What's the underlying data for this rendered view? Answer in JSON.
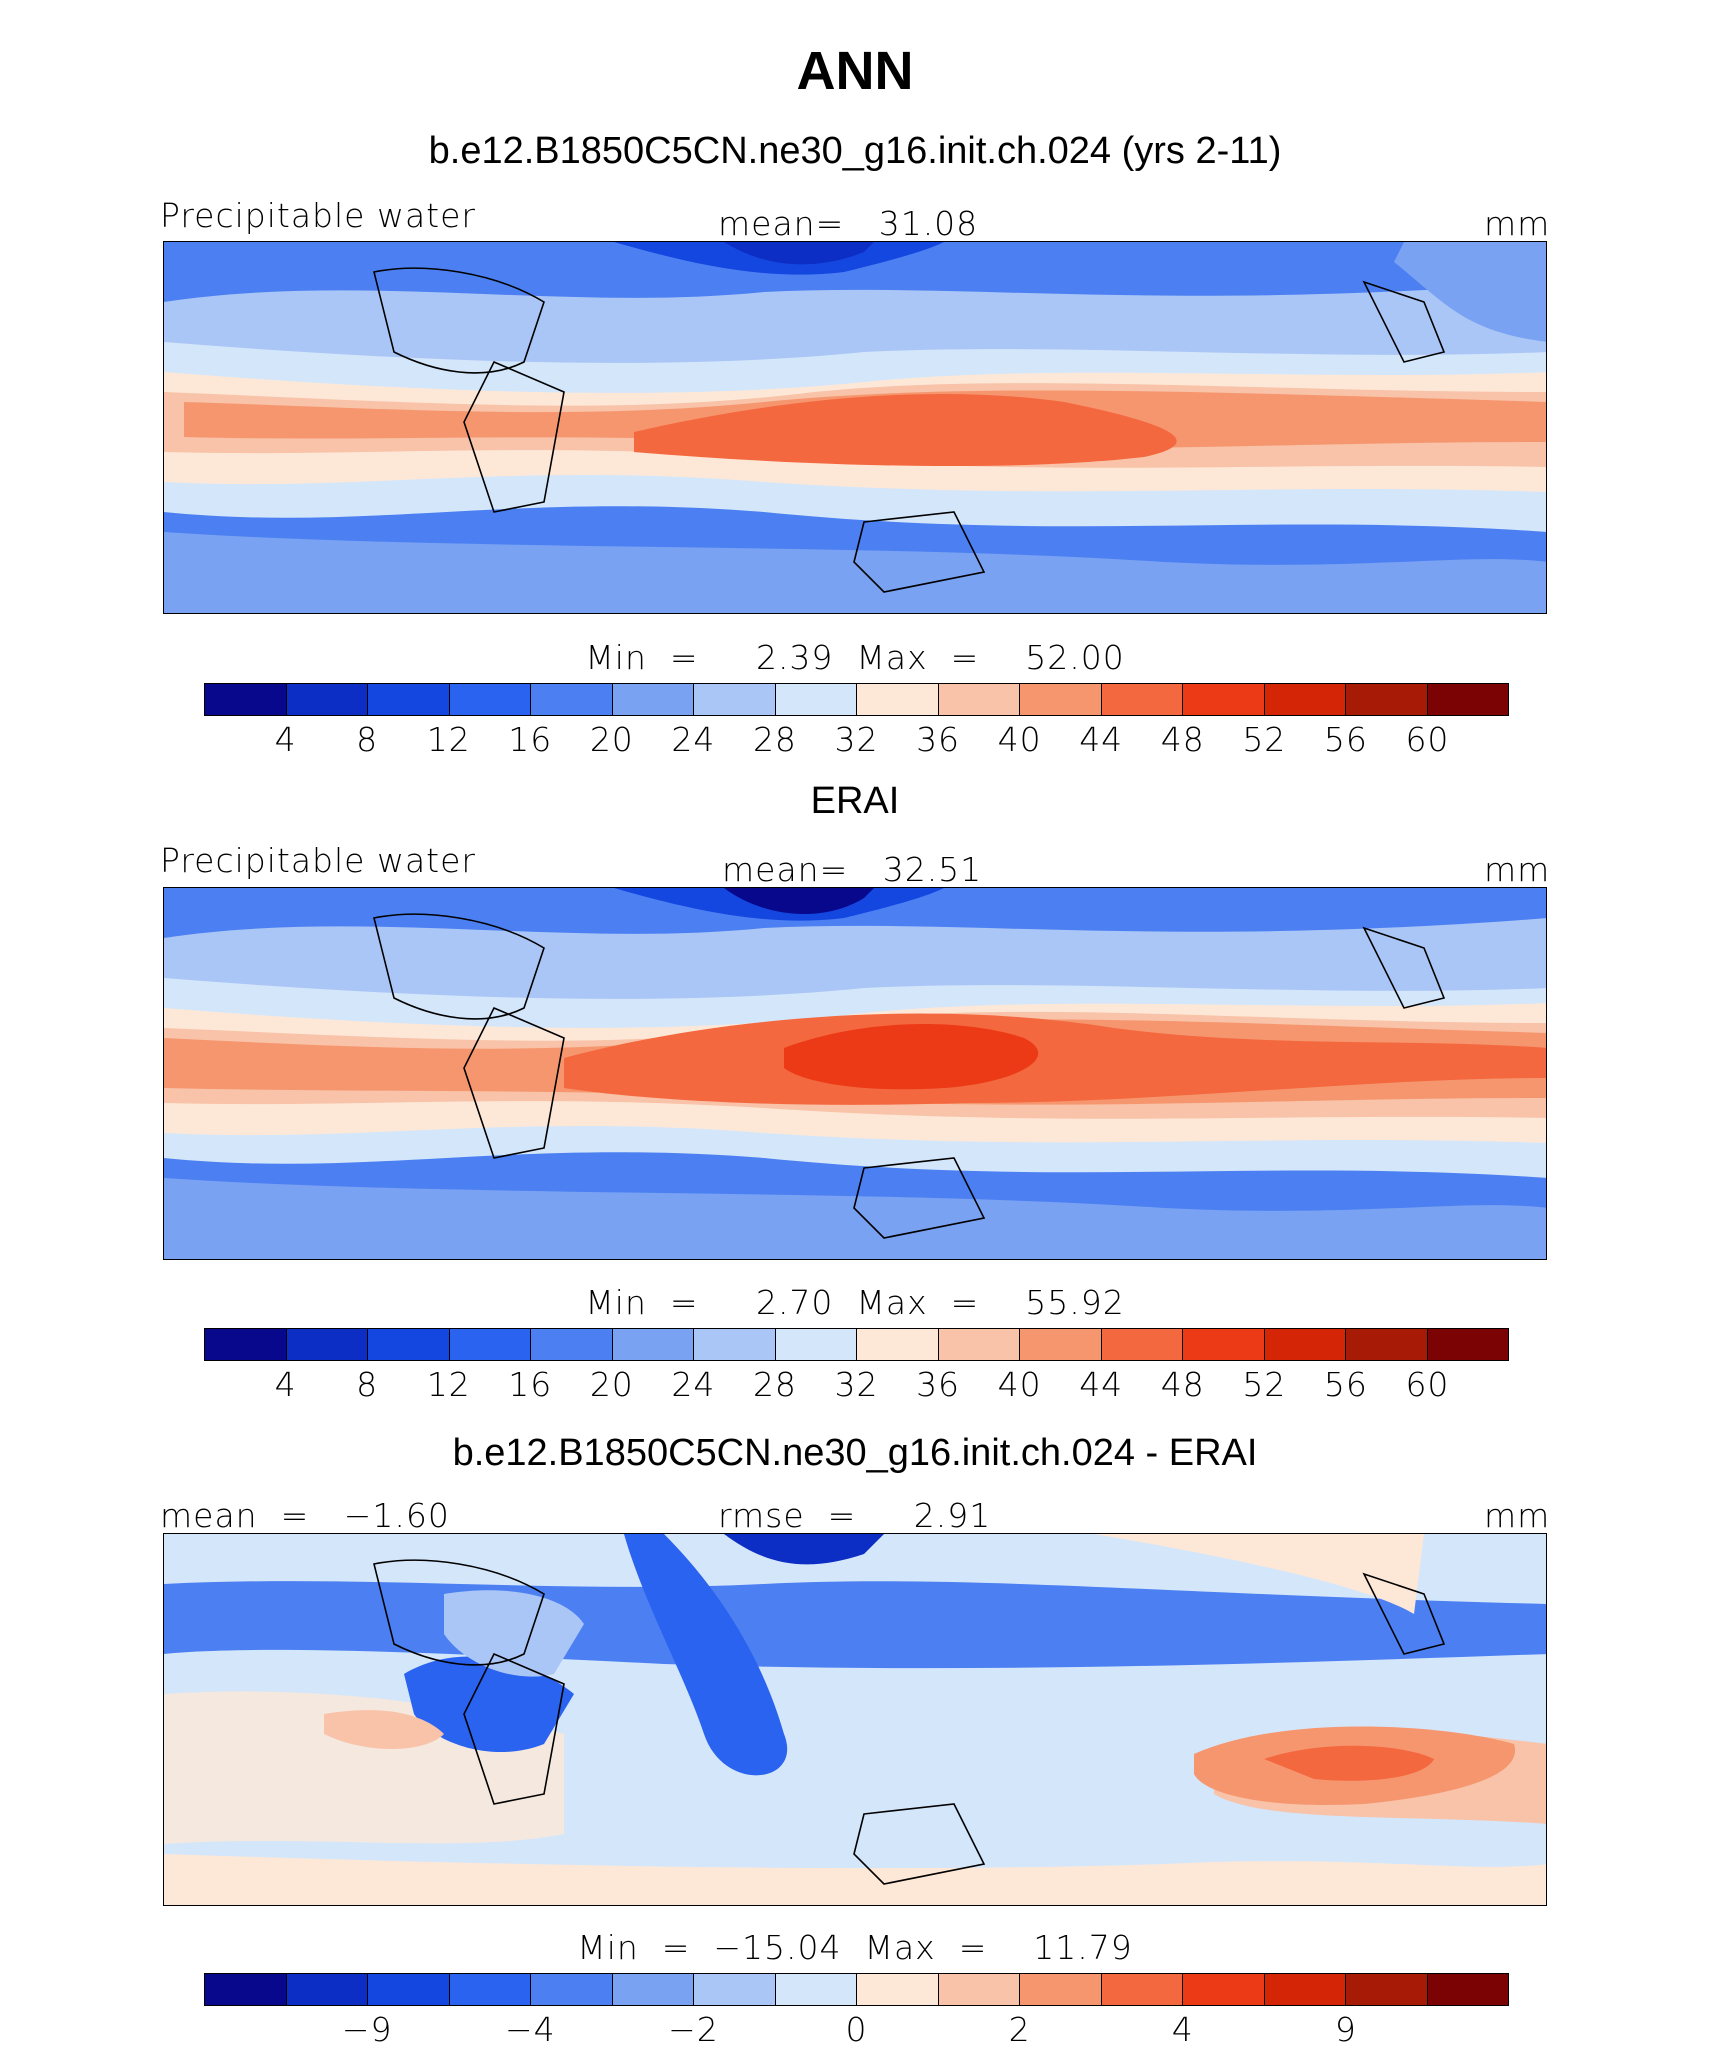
{
  "figure": {
    "title": "ANN",
    "colors": [
      "#08088c",
      "#0c2ec4",
      "#1446e0",
      "#2a63f0",
      "#4c80f2",
      "#7aa2f2",
      "#aac6f6",
      "#d4e6fa",
      "#fde8d8",
      "#f8c3a8",
      "#f6966f",
      "#f4683f",
      "#ec3a16",
      "#d42607",
      "#a61a06",
      "#7c0303"
    ]
  },
  "panels": [
    {
      "subtitle": "b.e12.B1850C5CN.ne30_g16.init.ch.024 (yrs 2-11)",
      "left_label": "Precipitable water",
      "center_label": "mean=   31.08",
      "units": "mm",
      "minmax": "Min  =     2.39  Max  =    52.00",
      "tick_labels": [
        "4",
        "8",
        "12",
        "16",
        "20",
        "24",
        "28",
        "32",
        "36",
        "40",
        "44",
        "48",
        "52",
        "56",
        "60"
      ]
    },
    {
      "subtitle": "ERAI",
      "left_label": "Precipitable water",
      "center_label": "mean=   32.51",
      "units": "mm",
      "minmax": "Min  =     2.70  Max  =    55.92",
      "tick_labels": [
        "4",
        "8",
        "12",
        "16",
        "20",
        "24",
        "28",
        "32",
        "36",
        "40",
        "44",
        "48",
        "52",
        "56",
        "60"
      ]
    },
    {
      "subtitle": "b.e12.B1850C5CN.ne30_g16.init.ch.024 - ERAI",
      "left_label": "mean  =   −1.60",
      "center_label": "rmse  =     2.91",
      "units": "mm",
      "minmax": "Min  =  −15.04  Max  =    11.79",
      "tick_labels": [
        "−9",
        "−4",
        "−2",
        "0",
        "2",
        "4",
        "9"
      ]
    }
  ]
}
